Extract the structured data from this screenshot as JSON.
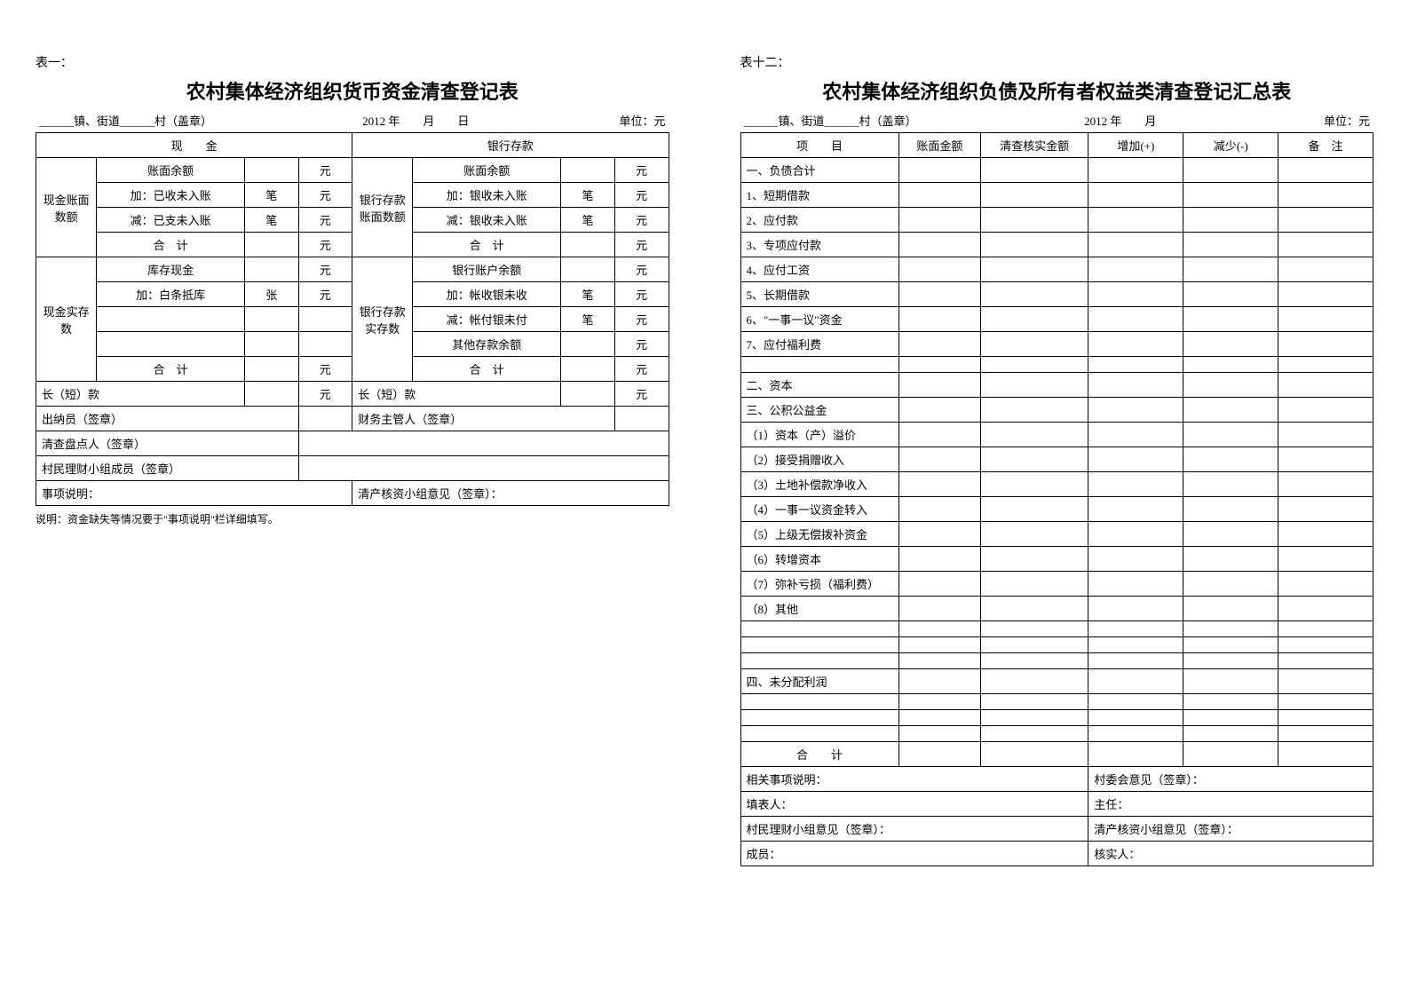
{
  "form1": {
    "label": "表一：",
    "title": "农村集体经济组织货币资金清查登记表",
    "header_left": "______镇、街道______村（盖章）",
    "header_center": "2012 年　　月　　日",
    "header_right": "单位：元",
    "h_cash": "现　　金",
    "h_bank": "银行存款",
    "r_cash_book": "现金账面数额",
    "r_bank_book": "银行存款账面数额",
    "l_balance": "账面余额",
    "l_add_recv": "加：已收未入账",
    "l_sub_pay": "减：已支未入账",
    "l_subtotal": "合　计",
    "u_bi": "笔",
    "u_zhang": "张",
    "u_yuan": "元",
    "b_balance": "账面余额",
    "b_add_recv": "加：银收未入账",
    "b_sub_pay": "减：银收未入账",
    "b_subtotal": "合　计",
    "r_cash_actual": "现金实存数",
    "r_bank_actual": "银行存款实存数",
    "l_inventory": "库存现金",
    "l_add_iou": "加：白条抵库",
    "b_bank_bal": "银行账户余额",
    "b_add_bank": "加：帐收银未收",
    "b_sub_bank": "减：帐付银未付",
    "b_other": "其他存款余额",
    "long_short": "长（短）款",
    "sig_cashier": "出纳员（签章）",
    "sig_finance": "财务主管人（签章）",
    "sig_inventory": "清查盘点人（签章）",
    "sig_committee": "村民理财小组成员（签章）",
    "notes": "事项说明：",
    "opinion": "清产核资小组意见（签章）：",
    "footnote": "说明：资金缺失等情况要于\"事项说明\"栏详细填写。"
  },
  "form2": {
    "label": "表十二：",
    "title": "农村集体经济组织负债及所有者权益类清查登记汇总表",
    "header_left": "______镇、街道______村（盖章）",
    "header_center": "2012 年　　月",
    "header_right": "单位：元",
    "cols": [
      "项　　目",
      "账面金额",
      "清查核实金额",
      "增加(+)",
      "减少(-)",
      "备　注"
    ],
    "rows": [
      "一、负债合计",
      "1、短期借款",
      "2、应付款",
      "3、专项应付款",
      "4、应付工资",
      "5、长期借款",
      "6、\"一事一议\"资金",
      "7、应付福利费",
      "",
      "二、资本",
      "三、公积公益金",
      "（1）资本（产）溢价",
      "（2）接受捐赠收入",
      "（3）土地补偿款净收入",
      "（4）一事一议资金转入",
      "（5）上级无偿拨补资金",
      "（6）转增资本",
      "（7）弥补亏损（福利费）",
      "（8）其他",
      "",
      "",
      "",
      "四、未分配利润",
      "",
      "",
      ""
    ],
    "total": "合　　计",
    "sig_notes": "相关事项说明：",
    "sig_vc": "村委会意见（签章）：",
    "sig_filler": "填表人：",
    "sig_director": "主任：",
    "sig_committee": "村民理财小组意见（签章）：",
    "sig_audit": "清产核资小组意见（签章）：",
    "sig_member": "成员：",
    "sig_verifier": "核实人："
  }
}
